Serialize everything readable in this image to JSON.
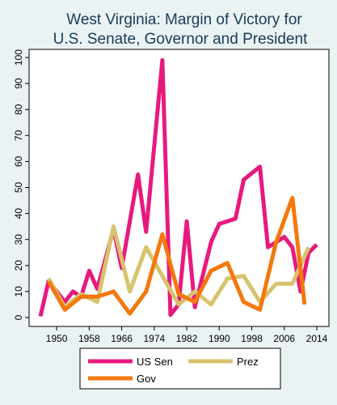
{
  "chart_data": {
    "type": "line",
    "title_lines": [
      "West Virginia: Margin of Victory for",
      "U.S. Senate, Governor and President"
    ],
    "x_ticks": [
      1950,
      1958,
      1966,
      1974,
      1982,
      1990,
      1998,
      2006,
      2014
    ],
    "y_ticks": [
      0,
      10,
      20,
      30,
      40,
      50,
      60,
      70,
      80,
      90,
      100
    ],
    "xlim": [
      1946,
      2014
    ],
    "ylim": [
      0,
      100
    ],
    "grid": false,
    "legend_placement": "bottom",
    "series": [
      {
        "name": "US Sen",
        "color": "#e8197e",
        "points": [
          [
            1946,
            0.5
          ],
          [
            1948,
            14
          ],
          [
            1952,
            6
          ],
          [
            1954,
            10
          ],
          [
            1956,
            8
          ],
          [
            1958,
            18
          ],
          [
            1960,
            11
          ],
          [
            1964,
            34
          ],
          [
            1966,
            19
          ],
          [
            1970,
            55
          ],
          [
            1972,
            33
          ],
          [
            1976,
            99
          ],
          [
            1978,
            1
          ],
          [
            1980,
            5
          ],
          [
            1982,
            37
          ],
          [
            1984,
            4
          ],
          [
            1988,
            29
          ],
          [
            1990,
            36
          ],
          [
            1994,
            38
          ],
          [
            1996,
            53
          ],
          [
            2000,
            58
          ],
          [
            2002,
            27
          ],
          [
            2006,
            31
          ],
          [
            2008,
            27
          ],
          [
            2010,
            10
          ],
          [
            2012,
            25
          ],
          [
            2014,
            28
          ]
        ]
      },
      {
        "name": "Prez",
        "color": "#d7c36e",
        "points": [
          [
            1948,
            15
          ],
          [
            1952,
            4
          ],
          [
            1956,
            9
          ],
          [
            1960,
            6
          ],
          [
            1964,
            35
          ],
          [
            1968,
            10
          ],
          [
            1972,
            27
          ],
          [
            1976,
            16
          ],
          [
            1980,
            5
          ],
          [
            1984,
            10
          ],
          [
            1988,
            5
          ],
          [
            1992,
            15
          ],
          [
            1996,
            16
          ],
          [
            2000,
            6
          ],
          [
            2004,
            13
          ],
          [
            2008,
            13
          ],
          [
            2012,
            27
          ]
        ]
      },
      {
        "name": "Gov",
        "color": "#f4780c",
        "points": [
          [
            1948,
            14
          ],
          [
            1952,
            3
          ],
          [
            1956,
            8
          ],
          [
            1960,
            8
          ],
          [
            1964,
            10
          ],
          [
            1968,
            1.5
          ],
          [
            1972,
            10
          ],
          [
            1976,
            32
          ],
          [
            1980,
            9
          ],
          [
            1984,
            6
          ],
          [
            1988,
            18
          ],
          [
            1992,
            21
          ],
          [
            1996,
            6
          ],
          [
            2000,
            3
          ],
          [
            2004,
            29
          ],
          [
            2008,
            46
          ],
          [
            2011,
            5
          ]
        ]
      }
    ]
  }
}
